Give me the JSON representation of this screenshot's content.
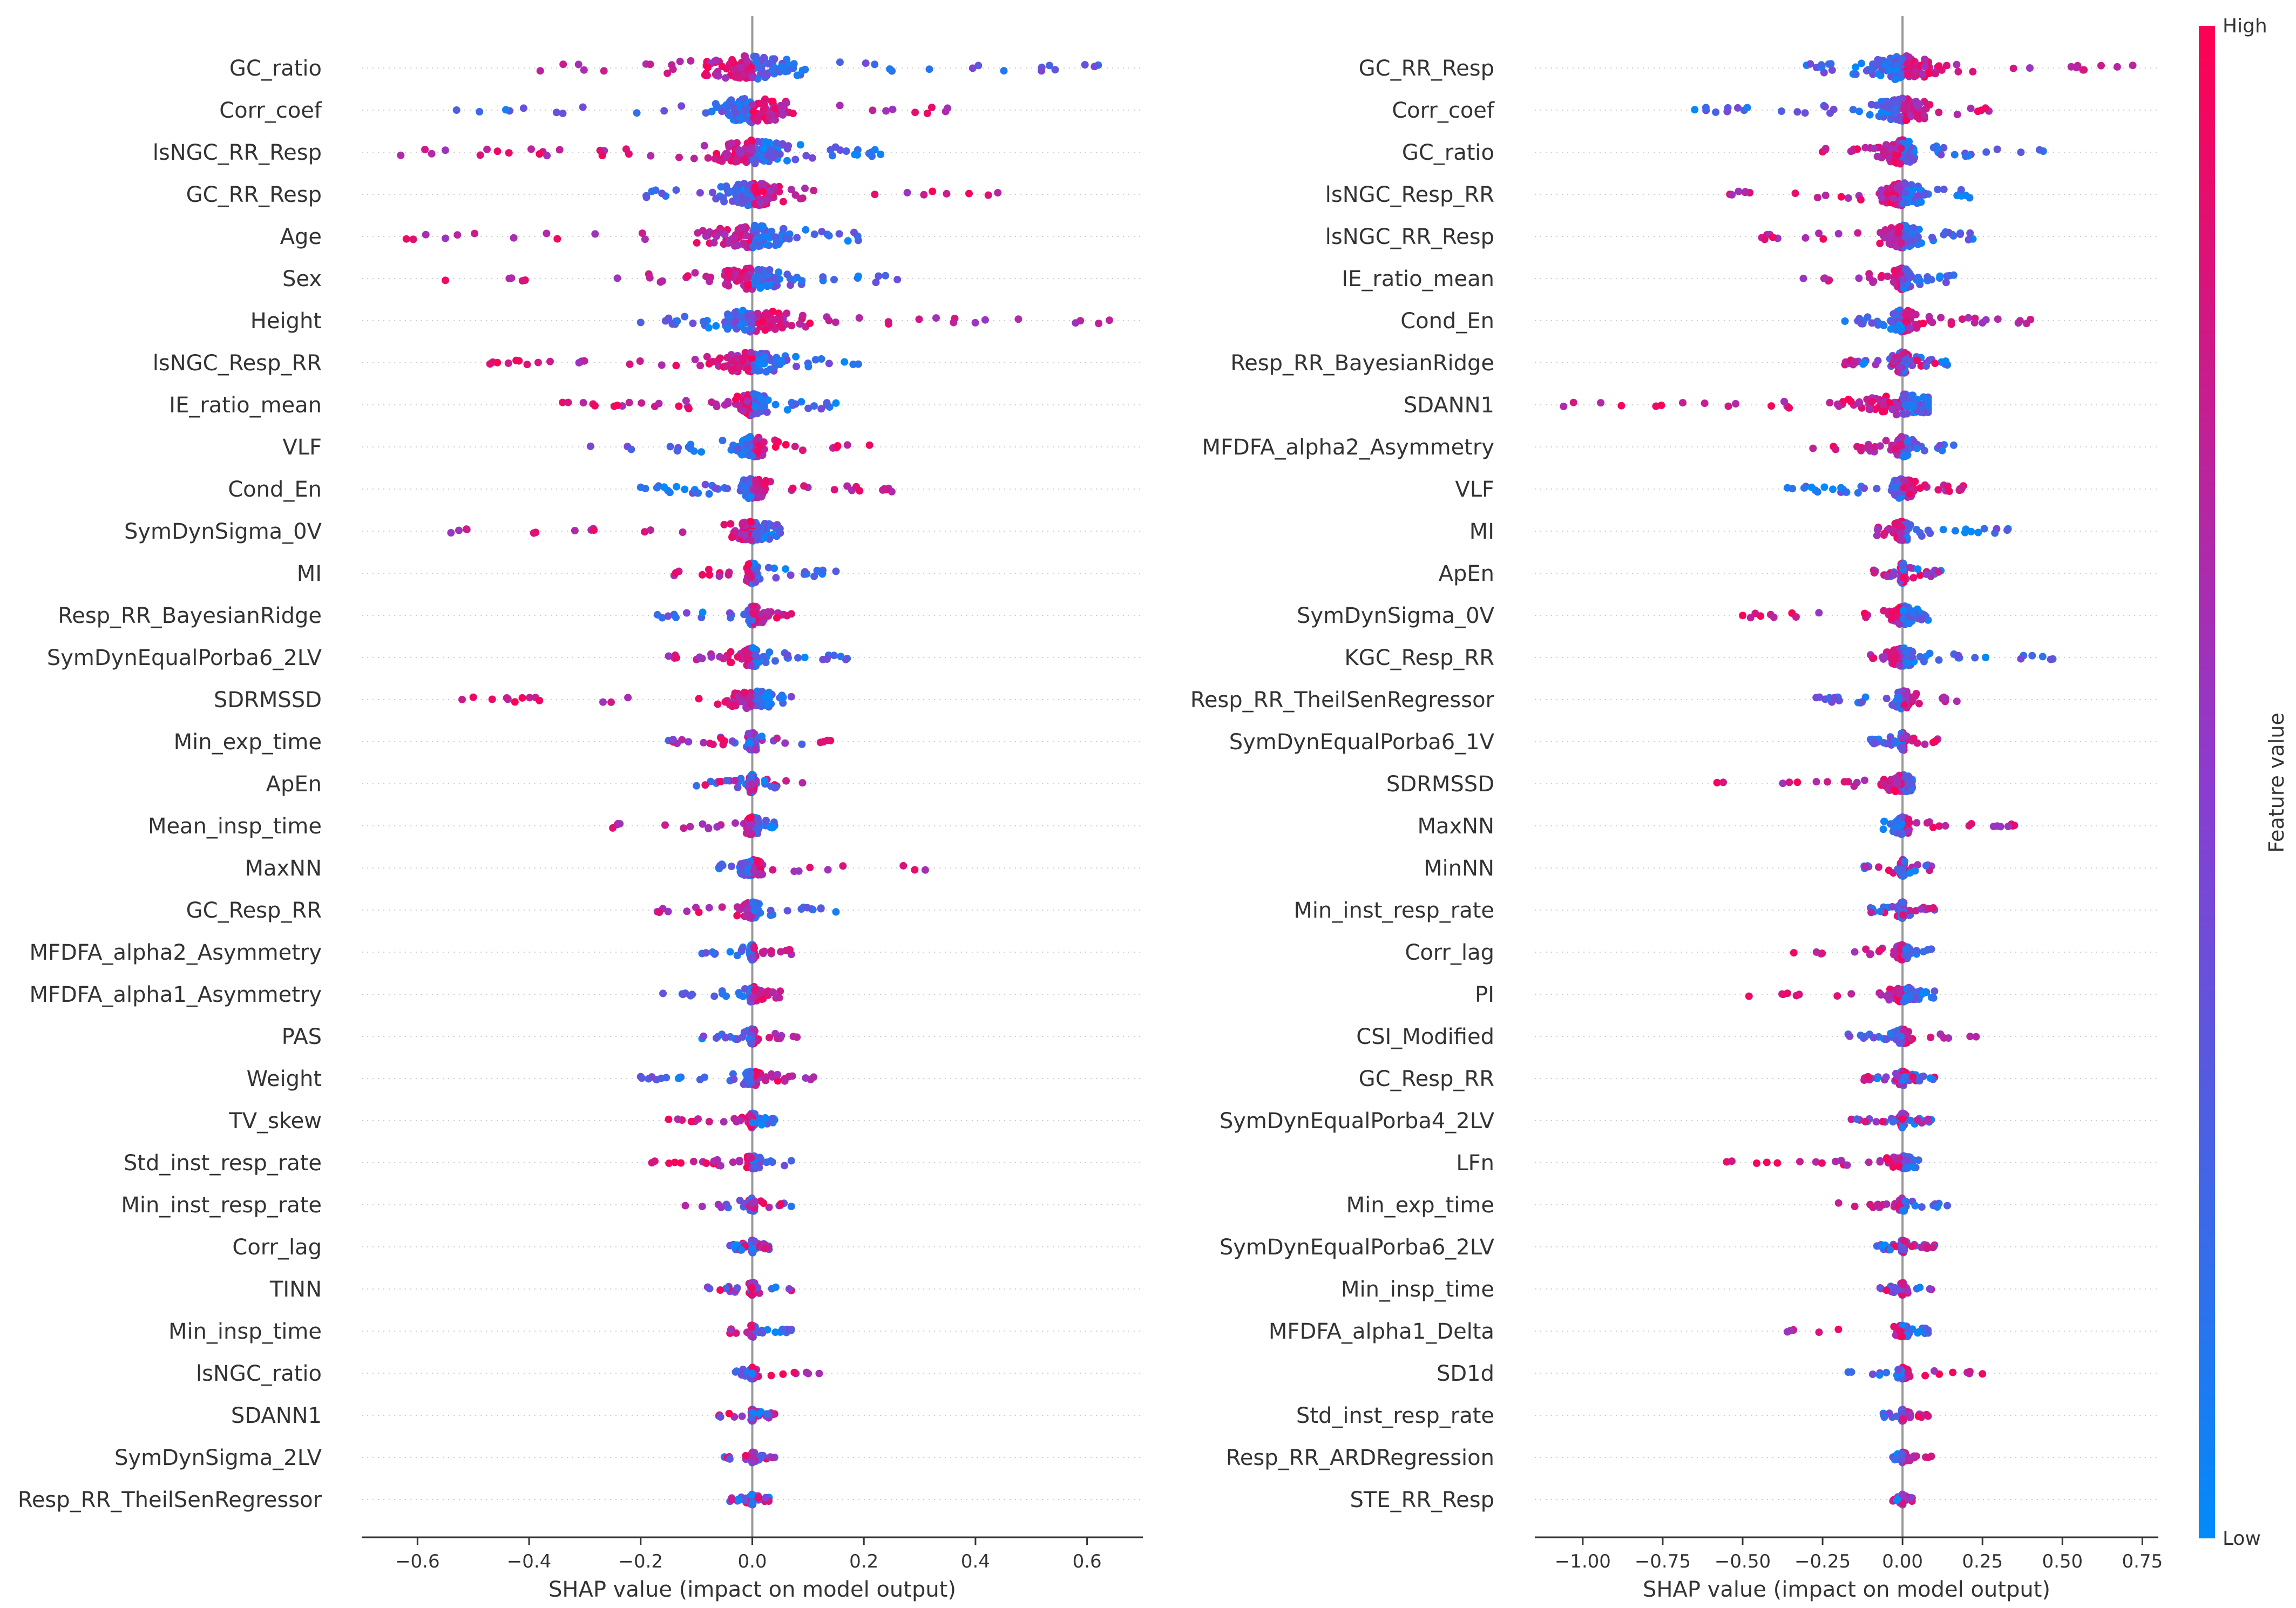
{
  "chart_data": [
    {
      "type": "scatter",
      "subtype": "shap-beeswarm",
      "xlabel": "SHAP value (impact on model output)",
      "xlim": [
        -0.7,
        0.7
      ],
      "xticks": [
        -0.6,
        -0.4,
        -0.2,
        0.0,
        0.2,
        0.4,
        0.6
      ],
      "xtick_labels": [
        "−0.6",
        "−0.4",
        "−0.2",
        "0.0",
        "0.2",
        "0.4",
        "0.6"
      ],
      "features": [
        {
          "name": "GC_ratio",
          "min": -0.38,
          "max": 0.62,
          "pattern": "hiNeg"
        },
        {
          "name": "Corr_coef",
          "min": -0.53,
          "max": 0.35,
          "pattern": "hiPos"
        },
        {
          "name": "lsNGC_RR_Resp",
          "min": -0.63,
          "max": 0.23,
          "pattern": "hiNeg"
        },
        {
          "name": "GC_RR_Resp",
          "min": -0.19,
          "max": 0.44,
          "pattern": "hiPos"
        },
        {
          "name": "Age",
          "min": -0.62,
          "max": 0.19,
          "pattern": "hiNeg"
        },
        {
          "name": "Sex",
          "min": -0.55,
          "max": 0.26,
          "pattern": "hiNeg"
        },
        {
          "name": "Height",
          "min": -0.2,
          "max": 0.64,
          "pattern": "hiPos"
        },
        {
          "name": "lsNGC_Resp_RR",
          "min": -0.47,
          "max": 0.19,
          "pattern": "hiNeg"
        },
        {
          "name": "IE_ratio_mean",
          "min": -0.34,
          "max": 0.15,
          "pattern": "hiNeg"
        },
        {
          "name": "VLF",
          "min": -0.29,
          "max": 0.21,
          "pattern": "hiPos"
        },
        {
          "name": "Cond_En",
          "min": -0.2,
          "max": 0.25,
          "pattern": "hiPos"
        },
        {
          "name": "SymDynSigma_0V",
          "min": -0.54,
          "max": 0.05,
          "pattern": "hiNeg"
        },
        {
          "name": "MI",
          "min": -0.14,
          "max": 0.15,
          "pattern": "hiNeg"
        },
        {
          "name": "Resp_RR_BayesianRidge",
          "min": -0.17,
          "max": 0.07,
          "pattern": "hiPos"
        },
        {
          "name": "SymDynEqualPorba6_2LV",
          "min": -0.15,
          "max": 0.17,
          "pattern": "hiNeg"
        },
        {
          "name": "SDRMSSD",
          "min": -0.52,
          "max": 0.07,
          "pattern": "hiNeg"
        },
        {
          "name": "Min_exp_time",
          "min": -0.15,
          "max": 0.14,
          "pattern": "mixed"
        },
        {
          "name": "ApEn",
          "min": -0.1,
          "max": 0.09,
          "pattern": "mixed"
        },
        {
          "name": "Mean_insp_time",
          "min": -0.25,
          "max": 0.04,
          "pattern": "hiNeg"
        },
        {
          "name": "MaxNN",
          "min": -0.06,
          "max": 0.31,
          "pattern": "hiPos"
        },
        {
          "name": "GC_Resp_RR",
          "min": -0.17,
          "max": 0.15,
          "pattern": "hiNeg"
        },
        {
          "name": "MFDFA_alpha2_Asymmetry",
          "min": -0.09,
          "max": 0.07,
          "pattern": "hiPos"
        },
        {
          "name": "MFDFA_alpha1_Asymmetry",
          "min": -0.16,
          "max": 0.05,
          "pattern": "hiPos"
        },
        {
          "name": "PAS",
          "min": -0.09,
          "max": 0.08,
          "pattern": "hiPos"
        },
        {
          "name": "Weight",
          "min": -0.2,
          "max": 0.11,
          "pattern": "hiPos"
        },
        {
          "name": "TV_skew",
          "min": -0.15,
          "max": 0.04,
          "pattern": "hiNeg"
        },
        {
          "name": "Std_inst_resp_rate",
          "min": -0.18,
          "max": 0.07,
          "pattern": "hiNeg"
        },
        {
          "name": "Min_inst_resp_rate",
          "min": -0.12,
          "max": 0.07,
          "pattern": "mixed"
        },
        {
          "name": "Corr_lag",
          "min": -0.04,
          "max": 0.03,
          "pattern": "mixed"
        },
        {
          "name": "TINN",
          "min": -0.08,
          "max": 0.07,
          "pattern": "mixed"
        },
        {
          "name": "Min_insp_time",
          "min": -0.04,
          "max": 0.07,
          "pattern": "hiNeg"
        },
        {
          "name": "lsNGC_ratio",
          "min": -0.03,
          "max": 0.12,
          "pattern": "hiPos"
        },
        {
          "name": "SDANN1",
          "min": -0.06,
          "max": 0.04,
          "pattern": "mixed"
        },
        {
          "name": "SymDynSigma_2LV",
          "min": -0.05,
          "max": 0.04,
          "pattern": "mixed"
        },
        {
          "name": "Resp_RR_TheilSenRegressor",
          "min": -0.04,
          "max": 0.03,
          "pattern": "mixed"
        }
      ]
    },
    {
      "type": "scatter",
      "subtype": "shap-beeswarm",
      "xlabel": "SHAP value (impact on model output)",
      "xlim": [
        -1.15,
        0.8
      ],
      "xticks": [
        -1.0,
        -0.75,
        -0.5,
        -0.25,
        0.0,
        0.25,
        0.5,
        0.75
      ],
      "xtick_labels": [
        "−1.00",
        "−0.75",
        "−0.50",
        "−0.25",
        "0.00",
        "0.25",
        "0.50",
        "0.75"
      ],
      "features": [
        {
          "name": "GC_RR_Resp",
          "min": -0.3,
          "max": 0.72,
          "pattern": "hiPos"
        },
        {
          "name": "Corr_coef",
          "min": -0.65,
          "max": 0.27,
          "pattern": "hiPos"
        },
        {
          "name": "GC_ratio",
          "min": -0.25,
          "max": 0.44,
          "pattern": "hiNeg"
        },
        {
          "name": "lsNGC_Resp_RR",
          "min": -0.54,
          "max": 0.21,
          "pattern": "hiNeg"
        },
        {
          "name": "lsNGC_RR_Resp",
          "min": -0.44,
          "max": 0.22,
          "pattern": "hiNeg"
        },
        {
          "name": "IE_ratio_mean",
          "min": -0.31,
          "max": 0.16,
          "pattern": "hiNeg"
        },
        {
          "name": "Cond_En",
          "min": -0.18,
          "max": 0.4,
          "pattern": "hiPos"
        },
        {
          "name": "Resp_RR_BayesianRidge",
          "min": -0.18,
          "max": 0.14,
          "pattern": "mixed"
        },
        {
          "name": "SDANN1",
          "min": -1.06,
          "max": 0.08,
          "pattern": "hiNeg"
        },
        {
          "name": "MFDFA_alpha2_Asymmetry",
          "min": -0.28,
          "max": 0.16,
          "pattern": "hiNeg"
        },
        {
          "name": "VLF",
          "min": -0.36,
          "max": 0.19,
          "pattern": "hiPos"
        },
        {
          "name": "MI",
          "min": -0.08,
          "max": 0.33,
          "pattern": "hiNeg"
        },
        {
          "name": "ApEn",
          "min": -0.09,
          "max": 0.12,
          "pattern": "mixed"
        },
        {
          "name": "SymDynSigma_0V",
          "min": -0.5,
          "max": 0.08,
          "pattern": "hiNeg"
        },
        {
          "name": "KGC_Resp_RR",
          "min": -0.1,
          "max": 0.47,
          "pattern": "hiNeg"
        },
        {
          "name": "Resp_RR_TheilSenRegressor",
          "min": -0.27,
          "max": 0.17,
          "pattern": "hiPos"
        },
        {
          "name": "SymDynEqualPorba6_1V",
          "min": -0.1,
          "max": 0.11,
          "pattern": "hiPos"
        },
        {
          "name": "SDRMSSD",
          "min": -0.58,
          "max": 0.03,
          "pattern": "hiNeg"
        },
        {
          "name": "MaxNN",
          "min": -0.06,
          "max": 0.35,
          "pattern": "hiPos"
        },
        {
          "name": "MinNN",
          "min": -0.12,
          "max": 0.09,
          "pattern": "mixed"
        },
        {
          "name": "Min_inst_resp_rate",
          "min": -0.1,
          "max": 0.1,
          "pattern": "mixed"
        },
        {
          "name": "Corr_lag",
          "min": -0.34,
          "max": 0.09,
          "pattern": "hiNeg"
        },
        {
          "name": "PI",
          "min": -0.48,
          "max": 0.1,
          "pattern": "hiNeg"
        },
        {
          "name": "CSI_Modified",
          "min": -0.17,
          "max": 0.23,
          "pattern": "hiPos"
        },
        {
          "name": "GC_Resp_RR",
          "min": -0.12,
          "max": 0.1,
          "pattern": "mixed"
        },
        {
          "name": "SymDynEqualPorba4_2LV",
          "min": -0.16,
          "max": 0.09,
          "pattern": "mixed"
        },
        {
          "name": "LFn",
          "min": -0.55,
          "max": 0.05,
          "pattern": "hiNeg"
        },
        {
          "name": "Min_exp_time",
          "min": -0.2,
          "max": 0.14,
          "pattern": "hiNeg"
        },
        {
          "name": "SymDynEqualPorba6_2LV",
          "min": -0.08,
          "max": 0.1,
          "pattern": "mixed"
        },
        {
          "name": "Min_insp_time",
          "min": -0.07,
          "max": 0.09,
          "pattern": "mixed"
        },
        {
          "name": "MFDFA_alpha1_Delta",
          "min": -0.36,
          "max": 0.08,
          "pattern": "hiNeg"
        },
        {
          "name": "SD1d",
          "min": -0.17,
          "max": 0.25,
          "pattern": "hiPos"
        },
        {
          "name": "Std_inst_resp_rate",
          "min": -0.06,
          "max": 0.08,
          "pattern": "hiPos"
        },
        {
          "name": "Resp_RR_ARDRegression",
          "min": -0.03,
          "max": 0.09,
          "pattern": "hiPos"
        },
        {
          "name": "STE_RR_Resp",
          "min": -0.03,
          "max": 0.03,
          "pattern": "mixed"
        }
      ]
    }
  ],
  "colorbar": {
    "label": "Feature value",
    "high_label": "High",
    "low_label": "Low",
    "high_color": "#ff0052",
    "mid_color": "#8c3cd0",
    "low_color": "#008bfb"
  }
}
